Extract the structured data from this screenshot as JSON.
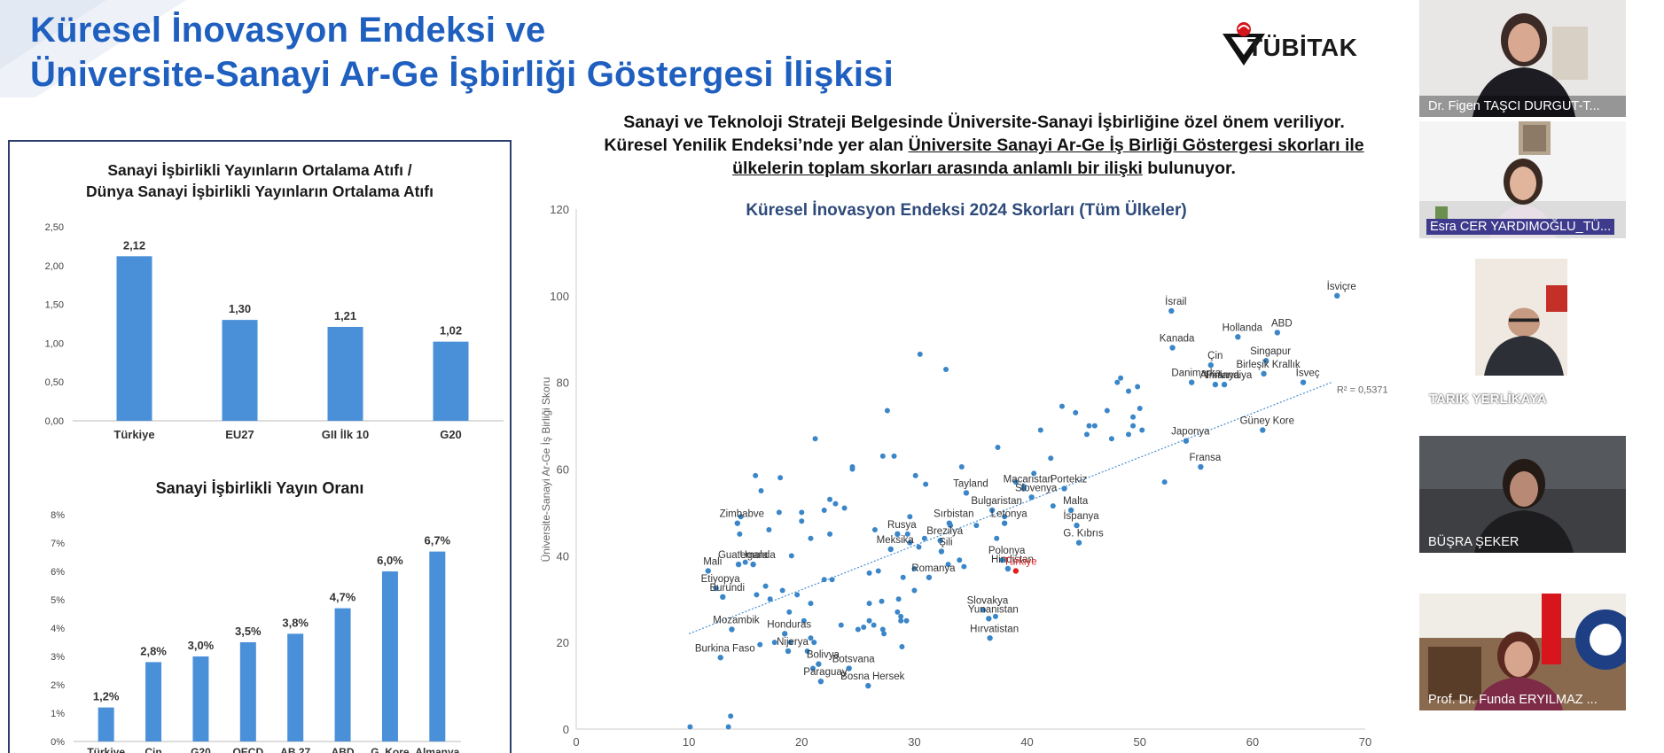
{
  "slide": {
    "title_line1": "Küresel İnovasyon Endeksi ve",
    "title_line2": "Üniversite-Sanayi Ar-Ge İşbirliği Göstergesi İlişkisi",
    "logo_text": "TÜBİTAK",
    "subtitle_line1": "Sanayi ve Teknoloji Strateji Belgesinde Üniversite-Sanayi İşbirliğine özel önem veriliyor.",
    "subtitle_line2_plain": "Küresel Yenilik Endeksi’nde yer alan ",
    "subtitle_line2_underlined": "Üniversite Sanayi Ar-Ge İş Birliği Göstergesi skorları ile",
    "subtitle_line3_underlined": "ülkelerin toplam skorları arasında anlamlı bir  ilişki",
    "subtitle_line3_plain": " bulunuyor.",
    "brand_color": "#1f5fbf",
    "bar_color": "#4a90d9"
  },
  "chart_data": [
    {
      "type": "bar",
      "title": "Sanayi İşbirlikli Yayınların Ortalama Atıfı / Dünya Sanayi İşbirlikli Yayınların Ortalama Atıfı",
      "title_line1": "Sanayi İşbirlikli Yayınların Ortalama Atıfı /",
      "title_line2": "Dünya Sanayi İşbirlikli Yayınların Ortalama Atıfı",
      "categories": [
        "Türkiye",
        "EU27",
        "GII İlk 10",
        "G20"
      ],
      "values": [
        2.12,
        1.3,
        1.21,
        1.02
      ],
      "value_labels": [
        "2,12",
        "1,30",
        "1,21",
        "1,02"
      ],
      "yticks": [
        "0,00",
        "0,50",
        "1,00",
        "1,50",
        "2,00",
        "2,50"
      ],
      "ylim": [
        0,
        2.5
      ],
      "color": "#4a90d9"
    },
    {
      "type": "bar",
      "title": "Sanayi İşbirlikli Yayın Oranı",
      "categories": [
        "Türkiye",
        "Çin",
        "G20",
        "OECD",
        "AB 27",
        "ABD",
        "G. Kore",
        "Almanya"
      ],
      "values": [
        1.2,
        2.8,
        3.0,
        3.5,
        3.8,
        4.7,
        6.0,
        6.7
      ],
      "value_labels": [
        "1,2%",
        "2,8%",
        "3,0%",
        "3,5%",
        "3,8%",
        "4,7%",
        "6,0%",
        "6,7%"
      ],
      "yticks": [
        "0%",
        "1%",
        "2%",
        "3%",
        "4%",
        "5%",
        "6%",
        "7%",
        "8%"
      ],
      "ylim": [
        0,
        8
      ],
      "color": "#4a90d9"
    },
    {
      "type": "scatter",
      "title": "Küresel İnovasyon Endeksi 2024 Skorları (Tüm Ülkeler)",
      "ylabel": "Üniversite-Sanayi Ar-Ge İş Birliği Skoru",
      "xlim": [
        0,
        70
      ],
      "ylim": [
        0,
        120
      ],
      "xticks": [
        0,
        10,
        20,
        30,
        40,
        50,
        60,
        70
      ],
      "yticks": [
        0,
        20,
        40,
        60,
        80,
        100,
        120
      ],
      "r2_label": "R² = 0,5371",
      "trendline": {
        "x": [
          10,
          67
        ],
        "y": [
          22,
          80
        ]
      },
      "point_color": "#3a86c8",
      "highlight_color": "#e02020",
      "labeled_points": [
        {
          "label": "İsviçre",
          "x": 67.5,
          "y": 100
        },
        {
          "label": "İsrail",
          "x": 52.8,
          "y": 96.5
        },
        {
          "label": "Hollanda",
          "x": 58.7,
          "y": 90.5
        },
        {
          "label": "ABD",
          "x": 62.2,
          "y": 91.5
        },
        {
          "label": "Kanada",
          "x": 52.9,
          "y": 88
        },
        {
          "label": "Çin",
          "x": 56.3,
          "y": 84
        },
        {
          "label": "Singapur",
          "x": 61.2,
          "y": 85
        },
        {
          "label": "Birleşik Krallık",
          "x": 61.0,
          "y": 82
        },
        {
          "label": "Danimarka",
          "x": 54.6,
          "y": 80
        },
        {
          "label": "Finlandiya",
          "x": 57.5,
          "y": 79.5
        },
        {
          "label": "İsveç",
          "x": 64.5,
          "y": 80
        },
        {
          "label": "Almanya",
          "x": 56.7,
          "y": 79.5
        },
        {
          "label": "Japonya",
          "x": 54.1,
          "y": 66.5
        },
        {
          "label": "Güney Kore",
          "x": 60.9,
          "y": 69
        },
        {
          "label": "Fransa",
          "x": 55.4,
          "y": 60.5
        },
        {
          "label": "Tayland",
          "x": 34.6,
          "y": 54.5
        },
        {
          "label": "Macaristan",
          "x": 39.7,
          "y": 55.5
        },
        {
          "label": "Slovenya",
          "x": 40.4,
          "y": 53.5
        },
        {
          "label": "Portekiz",
          "x": 43.3,
          "y": 55.5
        },
        {
          "label": "Bulgaristan",
          "x": 36.9,
          "y": 50.5
        },
        {
          "label": "Malta",
          "x": 43.9,
          "y": 50.5
        },
        {
          "label": "Sırbistan",
          "x": 33.1,
          "y": 47.5
        },
        {
          "label": "Rusya",
          "x": 28.5,
          "y": 45
        },
        {
          "label": "Letonya",
          "x": 38.0,
          "y": 47.5
        },
        {
          "label": "İspanya",
          "x": 44.4,
          "y": 47
        },
        {
          "label": "Brezilya",
          "x": 32.3,
          "y": 43.5
        },
        {
          "label": "G. Kıbrıs",
          "x": 44.6,
          "y": 43
        },
        {
          "label": "Meksika",
          "x": 27.9,
          "y": 41.5
        },
        {
          "label": "Polonya",
          "x": 37.8,
          "y": 39
        },
        {
          "label": "Şili",
          "x": 32.4,
          "y": 41
        },
        {
          "label": "Hindistan",
          "x": 38.3,
          "y": 37
        },
        {
          "label": "Türkiye",
          "x": 39.0,
          "y": 36.5,
          "highlight": true
        },
        {
          "label": "Romanya",
          "x": 31.3,
          "y": 35
        },
        {
          "label": "Zimbabve",
          "x": 14.3,
          "y": 47.5
        },
        {
          "label": "Guatemala",
          "x": 14.4,
          "y": 38
        },
        {
          "label": "Uganda",
          "x": 15.7,
          "y": 38
        },
        {
          "label": "Mali",
          "x": 11.7,
          "y": 36.5
        },
        {
          "label": "Etiyopya",
          "x": 12.4,
          "y": 32.5
        },
        {
          "label": "Burundi",
          "x": 13.0,
          "y": 30.5
        },
        {
          "label": "Slovakya",
          "x": 36.1,
          "y": 27.5
        },
        {
          "label": "Yunanistan",
          "x": 36.6,
          "y": 25.5
        },
        {
          "label": "Mozambik",
          "x": 13.8,
          "y": 23
        },
        {
          "label": "Honduras",
          "x": 18.5,
          "y": 22
        },
        {
          "label": "Burkina Faso",
          "x": 12.8,
          "y": 16.5
        },
        {
          "label": "Nijerya",
          "x": 18.8,
          "y": 18
        },
        {
          "label": "Hırvatistan",
          "x": 36.7,
          "y": 21
        },
        {
          "label": "Bolivya",
          "x": 21.5,
          "y": 15
        },
        {
          "label": "Botsvana",
          "x": 24.2,
          "y": 14
        },
        {
          "label": "Paraguay",
          "x": 21.7,
          "y": 11
        },
        {
          "label": "Bosna Hersek",
          "x": 25.9,
          "y": 10
        }
      ],
      "other_points": [
        [
          10.1,
          0.5
        ],
        [
          13.5,
          0.5
        ],
        [
          13.7,
          3
        ],
        [
          30.5,
          86.5
        ],
        [
          32.8,
          83
        ],
        [
          27.6,
          73.5
        ],
        [
          21.2,
          67
        ],
        [
          24.5,
          60
        ],
        [
          27.2,
          63
        ],
        [
          28.2,
          63
        ],
        [
          34.2,
          60.5
        ],
        [
          41.2,
          69
        ],
        [
          37.4,
          65
        ],
        [
          30.1,
          58.5
        ],
        [
          31.0,
          56.5
        ],
        [
          15.9,
          58.5
        ],
        [
          18.1,
          58
        ],
        [
          16.4,
          55
        ],
        [
          14.6,
          49
        ],
        [
          18.0,
          50
        ],
        [
          20.0,
          50
        ],
        [
          20.0,
          48
        ],
        [
          17.1,
          46
        ],
        [
          22.0,
          50.5
        ],
        [
          22.5,
          53
        ],
        [
          23.0,
          52
        ],
        [
          23.8,
          51
        ],
        [
          20.8,
          44
        ],
        [
          22.5,
          45
        ],
        [
          24.5,
          60.5
        ],
        [
          29.6,
          49
        ],
        [
          26.5,
          46
        ],
        [
          29.4,
          45
        ],
        [
          29.6,
          43
        ],
        [
          30.9,
          44
        ],
        [
          33.2,
          47
        ],
        [
          30.4,
          42
        ],
        [
          26.0,
          36
        ],
        [
          26.8,
          36.5
        ],
        [
          30.0,
          37
        ],
        [
          33.0,
          38
        ],
        [
          34.4,
          37.5
        ],
        [
          19.1,
          40
        ],
        [
          18.3,
          32
        ],
        [
          19.6,
          31
        ],
        [
          20.8,
          29
        ],
        [
          22.0,
          34.5
        ],
        [
          22.7,
          34.5
        ],
        [
          26.0,
          29
        ],
        [
          27.1,
          29.5
        ],
        [
          28.6,
          30
        ],
        [
          29.0,
          35
        ],
        [
          30.0,
          32
        ],
        [
          26.0,
          25
        ],
        [
          26.4,
          24
        ],
        [
          27.2,
          23
        ],
        [
          28.5,
          27
        ],
        [
          28.8,
          26
        ],
        [
          28.8,
          25
        ],
        [
          27.3,
          22
        ],
        [
          25.5,
          23.5
        ],
        [
          25.0,
          23
        ],
        [
          29.3,
          25
        ],
        [
          28.9,
          19
        ],
        [
          20.2,
          25
        ],
        [
          18.9,
          27
        ],
        [
          20.8,
          21
        ],
        [
          21.1,
          20
        ],
        [
          20.5,
          18
        ],
        [
          19.0,
          20
        ],
        [
          17.6,
          20
        ],
        [
          16.3,
          19.5
        ],
        [
          21.0,
          14
        ],
        [
          23.5,
          24
        ],
        [
          16.0,
          31
        ],
        [
          16.8,
          33
        ],
        [
          17.2,
          30
        ],
        [
          14.5,
          45
        ],
        [
          15.0,
          38.5
        ],
        [
          43.1,
          74.5
        ],
        [
          44.3,
          73
        ],
        [
          45.3,
          68
        ],
        [
          46.0,
          70
        ],
        [
          47.1,
          73.5
        ],
        [
          48.0,
          80
        ],
        [
          48.3,
          81
        ],
        [
          49.0,
          78
        ],
        [
          49.4,
          72
        ],
        [
          49.4,
          70
        ],
        [
          49.8,
          79
        ],
        [
          50.0,
          74
        ],
        [
          50.2,
          69
        ],
        [
          49.0,
          68
        ],
        [
          47.5,
          67
        ],
        [
          45.5,
          70
        ],
        [
          52.2,
          57
        ],
        [
          42.1,
          62.5
        ],
        [
          40.6,
          59
        ],
        [
          39.7,
          56
        ],
        [
          39.0,
          57
        ],
        [
          42.3,
          51.5
        ],
        [
          38.0,
          49
        ],
        [
          35.5,
          47
        ],
        [
          37.3,
          44
        ],
        [
          34.0,
          39
        ],
        [
          37.2,
          26
        ]
      ]
    }
  ],
  "participants": [
    {
      "name": "Dr. Figen TAŞCI DURGUT-T..."
    },
    {
      "name": "Esra CER YARDIMOĞLU_TÜ...",
      "active": true
    },
    {
      "name": "TARIK YERLİKAYA"
    },
    {
      "name": "BÜŞRA ŞEKER"
    },
    {
      "name": "Prof. Dr. Funda ERYILMAZ ..."
    }
  ],
  "chart_tick_labels_bottom_partial": [
    "Türkiye",
    "Çin",
    "G20",
    "OECD",
    "AB 27",
    "ABD",
    "G. Kore",
    "Almanya"
  ]
}
